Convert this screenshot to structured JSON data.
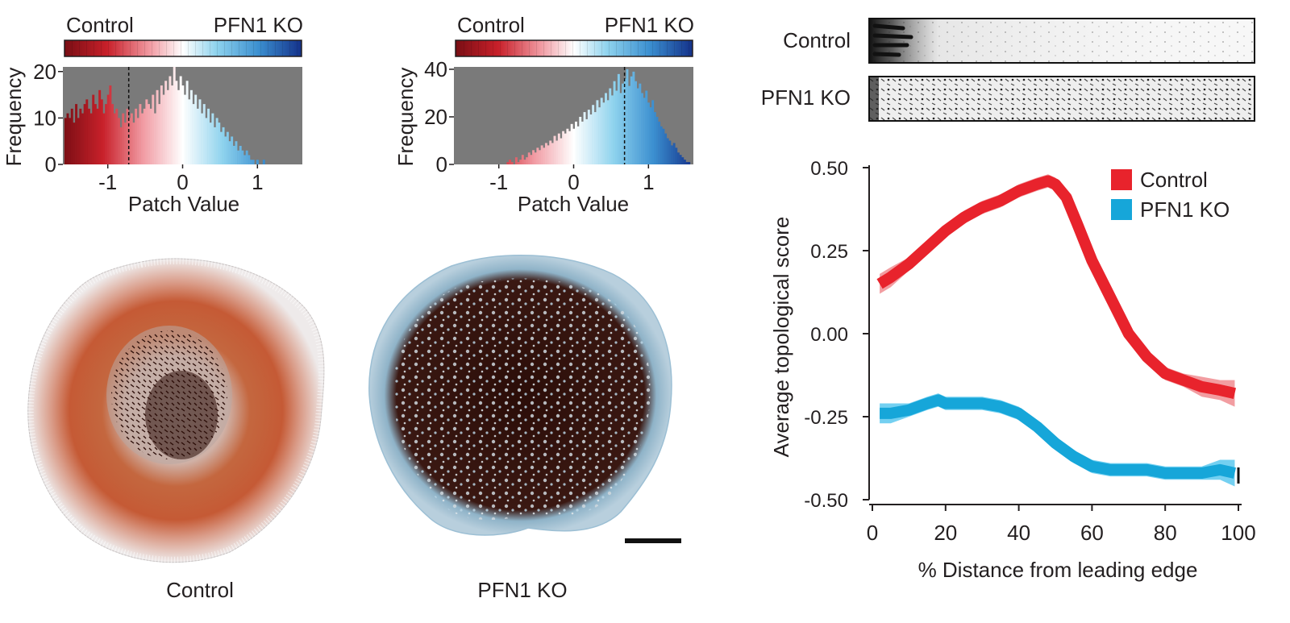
{
  "colorbar": {
    "left_label": "Control",
    "right_label": "PFN1 KO",
    "colors": [
      "#7a0e14",
      "#c8202a",
      "#f19aa2",
      "#ffffff",
      "#8fd3ee",
      "#3b8fd0",
      "#14318a"
    ]
  },
  "panel_labels": {
    "control": "Control",
    "pfn1ko": "PFN1 KO"
  },
  "strip_labels": {
    "control": "Control",
    "pfn1ko": "PFN1 KO"
  },
  "colors": {
    "control_line": "#e8232c",
    "control_band": "#f08c90",
    "pfn1ko_line": "#16a6d9",
    "pfn1ko_band": "#5cc8ee",
    "hist_background": "#7a7a7a",
    "cell_dark": "#2b0d08"
  },
  "chart_data": [
    {
      "type": "bar",
      "subtype": "histogram",
      "xlabel": "Patch Value",
      "ylabel": "Frequency",
      "xlim": [
        -1.6,
        1.6
      ],
      "ylim": [
        0,
        21
      ],
      "xticks": [
        -1,
        0,
        1
      ],
      "xtick_labels": [
        "-1",
        "0",
        "1"
      ],
      "yticks": [
        0,
        10,
        20
      ],
      "ytick_labels": [
        "0",
        "10",
        "20"
      ],
      "threshold": -0.72,
      "bin_start": -1.58,
      "bin_width": 0.0285,
      "counts": [
        10,
        11,
        10,
        12,
        9,
        13,
        10,
        12,
        11,
        13,
        14,
        12,
        11,
        15,
        13,
        12,
        16,
        14,
        11,
        13,
        15,
        17,
        13,
        11,
        12,
        10,
        8,
        11,
        9,
        12,
        10,
        11,
        9,
        12,
        10,
        13,
        11,
        12,
        14,
        13,
        12,
        15,
        11,
        16,
        13,
        17,
        15,
        18,
        16,
        19,
        17,
        21,
        18,
        16,
        19,
        17,
        15,
        18,
        14,
        16,
        13,
        15,
        12,
        14,
        11,
        13,
        10,
        12,
        9,
        11,
        8,
        10,
        9,
        7,
        8,
        6,
        7,
        5,
        6,
        4,
        5,
        3,
        4,
        3,
        2,
        3,
        2,
        1,
        1,
        0,
        1,
        0,
        0,
        1,
        0,
        0,
        0,
        0,
        0,
        0,
        0,
        0,
        0,
        0,
        0,
        0,
        0,
        0,
        0,
        0,
        0,
        0
      ]
    },
    {
      "type": "bar",
      "subtype": "histogram",
      "xlabel": "Patch Value",
      "ylabel": "Frequency",
      "xlim": [
        -1.6,
        1.6
      ],
      "ylim": [
        0,
        41
      ],
      "xticks": [
        -1,
        0,
        1
      ],
      "xtick_labels": [
        "-1",
        "0",
        "1"
      ],
      "yticks": [
        0,
        20,
        40
      ],
      "ytick_labels": [
        "0",
        "20",
        "40"
      ],
      "threshold": 0.68,
      "bin_start": -1.58,
      "bin_width": 0.0285,
      "counts": [
        0,
        0,
        0,
        0,
        0,
        0,
        0,
        0,
        0,
        0,
        0,
        0,
        0,
        0,
        0,
        0,
        0,
        0,
        0,
        0,
        0,
        0,
        0,
        0,
        1,
        2,
        1,
        0,
        3,
        1,
        2,
        4,
        2,
        3,
        5,
        4,
        6,
        5,
        7,
        6,
        8,
        7,
        9,
        8,
        10,
        9,
        12,
        10,
        13,
        11,
        14,
        13,
        15,
        14,
        17,
        15,
        18,
        16,
        20,
        18,
        22,
        19,
        23,
        21,
        25,
        22,
        27,
        24,
        28,
        26,
        30,
        27,
        32,
        29,
        35,
        31,
        38,
        30,
        34,
        36,
        40,
        33,
        37,
        39,
        35,
        32,
        34,
        30,
        28,
        31,
        26,
        24,
        27,
        22,
        20,
        18,
        16,
        15,
        13,
        11,
        10,
        8,
        9,
        7,
        5,
        4,
        3,
        2,
        1,
        1,
        0,
        0
      ]
    },
    {
      "type": "line",
      "xlabel": "% Distance from leading edge",
      "ylabel": "Average topological score",
      "xlim": [
        0,
        100
      ],
      "ylim": [
        -0.5,
        0.5
      ],
      "xticks": [
        0,
        20,
        40,
        60,
        80,
        100
      ],
      "xtick_labels": [
        "0",
        "20",
        "40",
        "60",
        "80",
        "100"
      ],
      "yticks": [
        0.5,
        0.25,
        0.0,
        -0.25,
        -0.5
      ],
      "ytick_labels": [
        "0.50",
        "0.25",
        "0.00",
        "-0.25",
        "-0.50"
      ],
      "legend_position": "top-right",
      "series": [
        {
          "name": "Control",
          "color": "#e8232c",
          "x": [
            2,
            5,
            10,
            15,
            20,
            25,
            30,
            35,
            40,
            45,
            48,
            50,
            53,
            56,
            60,
            65,
            70,
            75,
            80,
            85,
            90,
            95,
            99
          ],
          "y": [
            0.15,
            0.17,
            0.21,
            0.26,
            0.31,
            0.35,
            0.38,
            0.4,
            0.43,
            0.45,
            0.46,
            0.45,
            0.41,
            0.33,
            0.22,
            0.11,
            0.0,
            -0.07,
            -0.12,
            -0.14,
            -0.16,
            -0.17,
            -0.18
          ],
          "ci": [
            0.03,
            0.03,
            0.02,
            0.02,
            0.02,
            0.02,
            0.02,
            0.02,
            0.02,
            0.02,
            0.02,
            0.02,
            0.02,
            0.02,
            0.02,
            0.02,
            0.02,
            0.02,
            0.02,
            0.02,
            0.03,
            0.03,
            0.04
          ]
        },
        {
          "name": "PFN1 KO",
          "color": "#16a6d9",
          "x": [
            2,
            5,
            10,
            15,
            18,
            20,
            25,
            30,
            35,
            40,
            45,
            50,
            55,
            60,
            65,
            70,
            75,
            80,
            85,
            90,
            95,
            99
          ],
          "y": [
            -0.24,
            -0.24,
            -0.23,
            -0.21,
            -0.2,
            -0.21,
            -0.21,
            -0.21,
            -0.22,
            -0.24,
            -0.28,
            -0.33,
            -0.37,
            -0.4,
            -0.41,
            -0.41,
            -0.41,
            -0.42,
            -0.42,
            -0.42,
            -0.41,
            -0.42
          ],
          "ci": [
            0.03,
            0.03,
            0.02,
            0.02,
            0.02,
            0.02,
            0.02,
            0.02,
            0.02,
            0.02,
            0.02,
            0.02,
            0.02,
            0.02,
            0.02,
            0.02,
            0.02,
            0.02,
            0.02,
            0.02,
            0.03,
            0.04
          ]
        }
      ]
    }
  ]
}
